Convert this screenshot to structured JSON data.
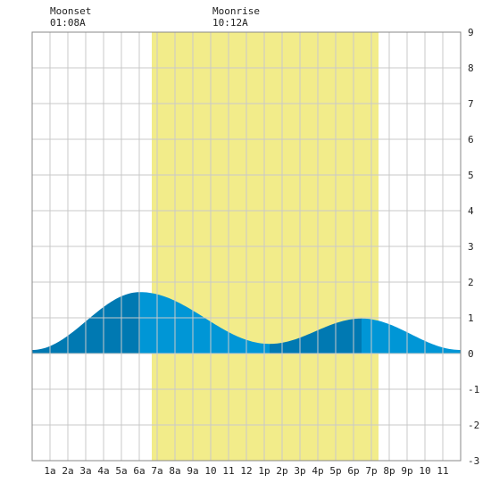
{
  "chart_data": {
    "type": "area",
    "title": "",
    "xlabel": "",
    "ylabel": "",
    "xlim": [
      0,
      24
    ],
    "ylim": [
      -3,
      9
    ],
    "y_ticks": [
      -3,
      -2,
      -1,
      0,
      1,
      2,
      3,
      4,
      5,
      6,
      7,
      8,
      9
    ],
    "x_ticks": [
      {
        "x": 1,
        "label": "1a"
      },
      {
        "x": 2,
        "label": "2a"
      },
      {
        "x": 3,
        "label": "3a"
      },
      {
        "x": 4,
        "label": "4a"
      },
      {
        "x": 5,
        "label": "5a"
      },
      {
        "x": 6,
        "label": "6a"
      },
      {
        "x": 7,
        "label": "7a"
      },
      {
        "x": 8,
        "label": "8a"
      },
      {
        "x": 9,
        "label": "9a"
      },
      {
        "x": 10,
        "label": "10"
      },
      {
        "x": 11,
        "label": "11"
      },
      {
        "x": 12,
        "label": "12"
      },
      {
        "x": 13,
        "label": "1p"
      },
      {
        "x": 14,
        "label": "2p"
      },
      {
        "x": 15,
        "label": "3p"
      },
      {
        "x": 16,
        "label": "4p"
      },
      {
        "x": 17,
        "label": "5p"
      },
      {
        "x": 18,
        "label": "6p"
      },
      {
        "x": 19,
        "label": "7p"
      },
      {
        "x": 20,
        "label": "8p"
      },
      {
        "x": 21,
        "label": "9p"
      },
      {
        "x": 22,
        "label": "10"
      },
      {
        "x": 23,
        "label": "11"
      }
    ],
    "grid": true,
    "daylight": {
      "start": 6.7,
      "end": 19.4,
      "color": "#f2ec8a"
    },
    "tide_extrema": [
      {
        "x": 0.0,
        "y": 0.1
      },
      {
        "x": 6.05,
        "y": 1.72
      },
      {
        "x": 13.3,
        "y": 0.27
      },
      {
        "x": 18.45,
        "y": 0.98
      },
      {
        "x": 24.0,
        "y": 0.1
      }
    ],
    "colors": {
      "rising": "#0079b2",
      "falling": "#0096d6",
      "grid": "#c9c9c9"
    },
    "moon_events": [
      {
        "label": "Moonset",
        "time": "01:08A"
      },
      {
        "label": "Moonrise",
        "time": "10:12A"
      }
    ]
  }
}
